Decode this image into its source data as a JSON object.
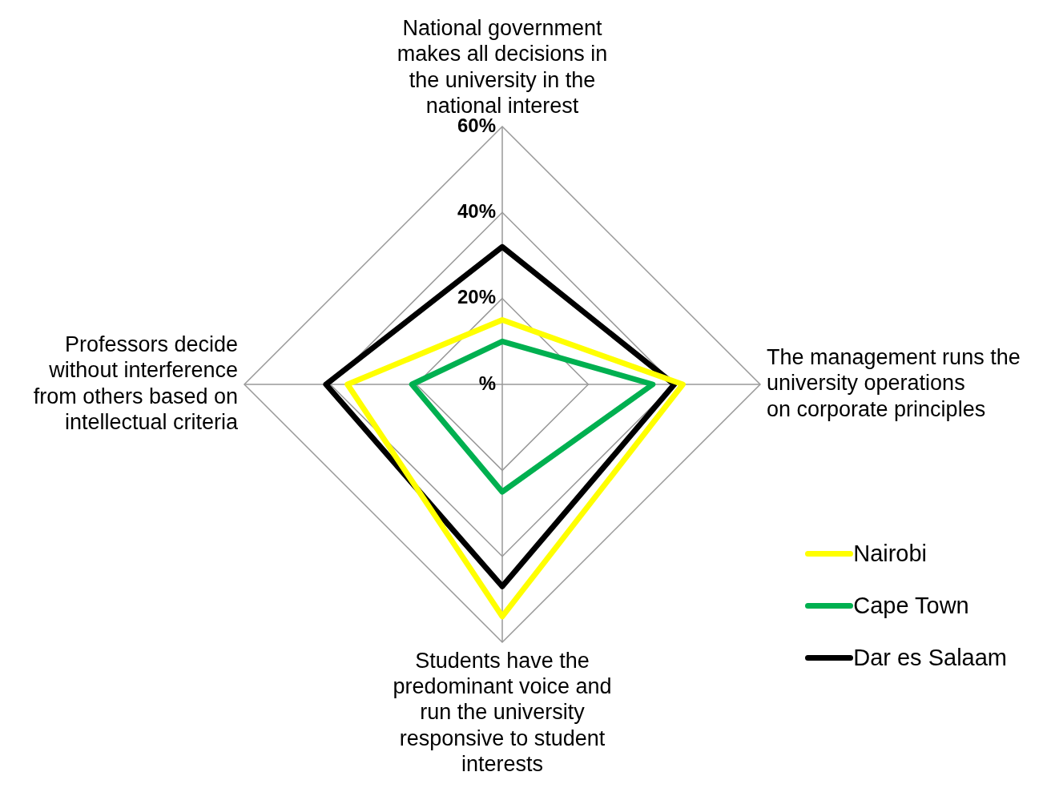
{
  "chart_data": {
    "type": "radar",
    "categories": [
      "National government makes all decisions in the university in the national interest",
      "The management runs the university operations on corporate principles",
      "Students have the predominant voice and run the university responsive to student interests",
      "Professors decide without interference from others based on intellectual criteria"
    ],
    "series": [
      {
        "name": "Nairobi",
        "color": "#ffff00",
        "values": [
          15,
          42,
          54,
          36
        ]
      },
      {
        "name": "Cape Town",
        "color": "#00b050",
        "values": [
          10,
          35,
          25,
          21
        ]
      },
      {
        "name": "Dar es Salaam",
        "color": "#000000",
        "values": [
          32,
          40,
          47,
          41
        ]
      }
    ],
    "ylim": [
      0,
      60
    ],
    "yticks": [
      {
        "value": 0,
        "label": "%"
      },
      {
        "value": 20,
        "label": "20%"
      },
      {
        "value": 40,
        "label": "40%"
      },
      {
        "value": 60,
        "label": "60%"
      }
    ],
    "grid": true,
    "legend": "bottom right",
    "marker": "none",
    "line_style": "solid"
  }
}
